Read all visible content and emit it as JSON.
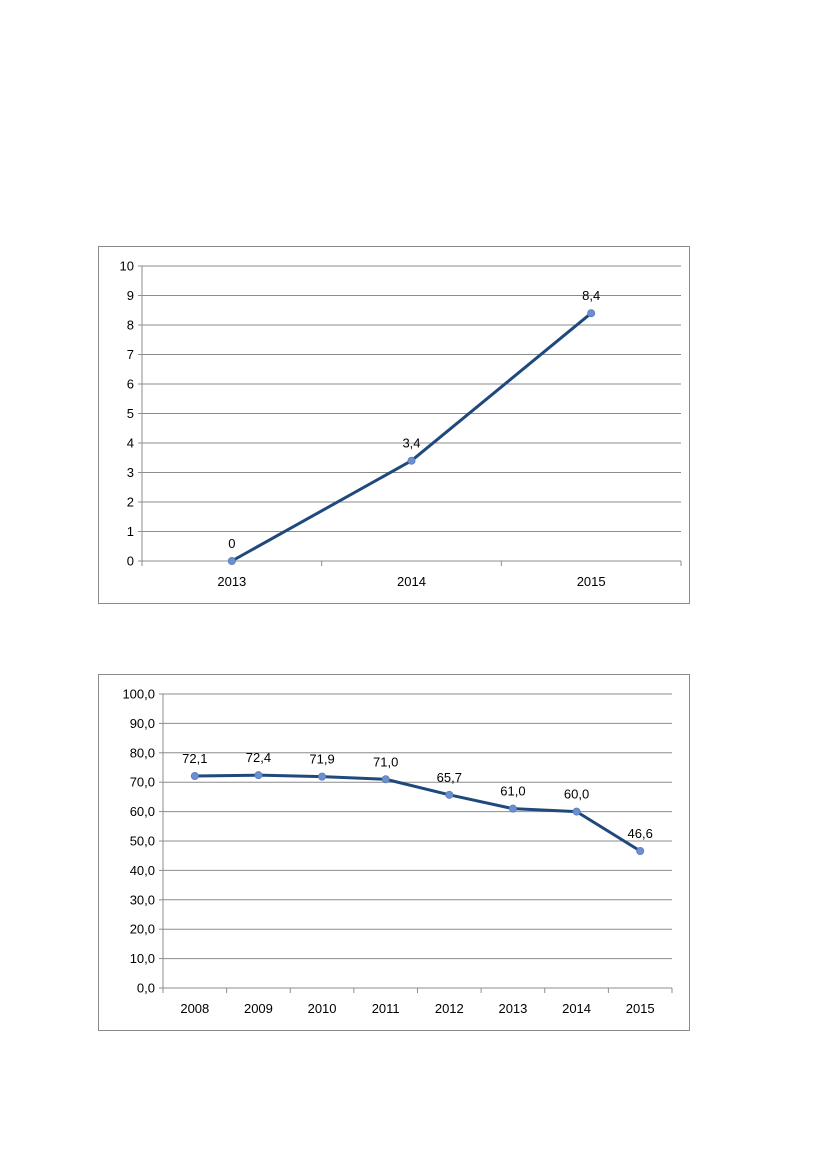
{
  "chart_data": [
    {
      "type": "line",
      "title": "",
      "xlabel": "",
      "ylabel": "",
      "categories": [
        "2013",
        "2014",
        "2015"
      ],
      "series": [
        {
          "values": [
            0,
            3.4,
            8.4
          ],
          "labels": [
            "0",
            "3,4",
            "8,4"
          ]
        }
      ],
      "ylim": [
        0,
        10
      ],
      "yticks": [
        0,
        1,
        2,
        3,
        4,
        5,
        6,
        7,
        8,
        9,
        10
      ],
      "ytick_labels": [
        "0",
        "1",
        "2",
        "3",
        "4",
        "5",
        "6",
        "7",
        "8",
        "9",
        "10"
      ],
      "grid": true,
      "legend": "none",
      "line_color": "#1f497d",
      "marker_color": "#6d8fcf"
    },
    {
      "type": "line",
      "title": "",
      "xlabel": "",
      "ylabel": "",
      "categories": [
        "2008",
        "2009",
        "2010",
        "2011",
        "2012",
        "2013",
        "2014",
        "2015"
      ],
      "series": [
        {
          "values": [
            72.1,
            72.4,
            71.9,
            71.0,
            65.7,
            61.0,
            60.0,
            46.6
          ],
          "labels": [
            "72,1",
            "72,4",
            "71,9",
            "71,0",
            "65,7",
            "61,0",
            "60,0",
            "46,6"
          ]
        }
      ],
      "ylim": [
        0,
        100
      ],
      "yticks": [
        0,
        10,
        20,
        30,
        40,
        50,
        60,
        70,
        80,
        90,
        100
      ],
      "ytick_labels": [
        "0,0",
        "10,0",
        "20,0",
        "30,0",
        "40,0",
        "50,0",
        "60,0",
        "70,0",
        "80,0",
        "90,0",
        "100,0"
      ],
      "grid": true,
      "legend": "none",
      "line_color": "#1f497d",
      "marker_color": "#6d8fcf"
    }
  ]
}
